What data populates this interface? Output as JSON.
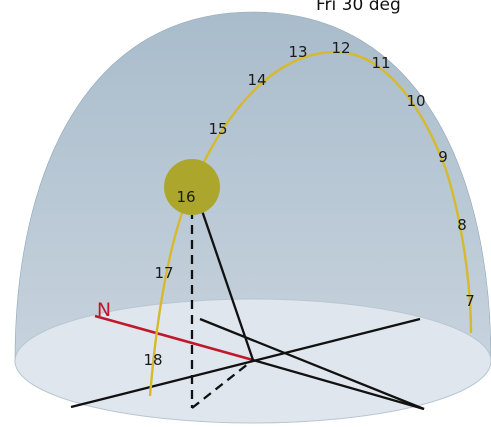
{
  "header_text": "Fri 30 deg",
  "north_label": "N",
  "sun_label": "16",
  "hour_labels": [
    "7",
    "8",
    "9",
    "10",
    "11",
    "12",
    "13",
    "14",
    "15",
    "16",
    "17",
    "18"
  ],
  "colors": {
    "dome": "#b3c4d2",
    "ground": "#dfe5ec",
    "sun_path": "#d3b62a",
    "sun": "#ada62c",
    "north_line": "#c0182b",
    "lines": "#111111"
  }
}
